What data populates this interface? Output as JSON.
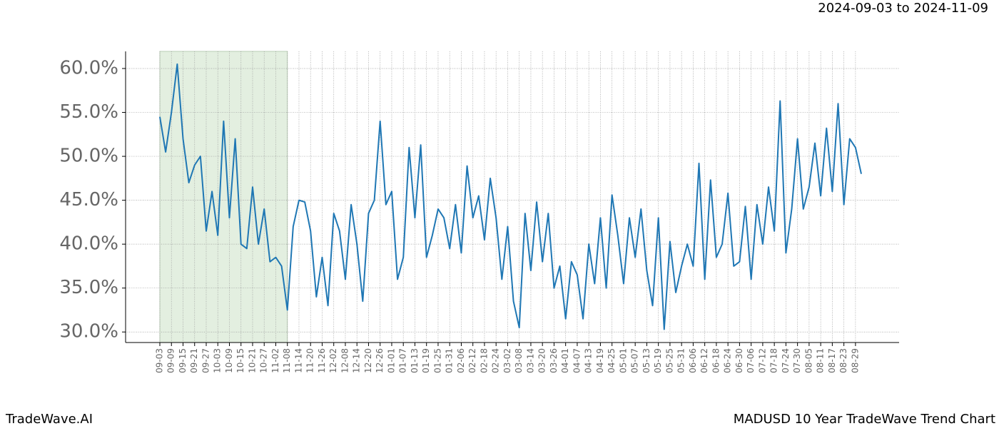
{
  "chart_data": {
    "type": "line",
    "date_range": "2024-09-03 to 2024-11-09",
    "footer_left": "TradeWave.AI",
    "footer_right": "MADUSD 10 Year TradeWave Trend Chart",
    "color": "#1f77b4",
    "highlight": {
      "from": "09-03",
      "to": "11-08",
      "color": "#e3efe0"
    },
    "grid": true,
    "ylim": [
      28.8,
      61.95
    ],
    "yticks": [
      {
        "value": 30,
        "label": "30.0%"
      },
      {
        "value": 35,
        "label": "35.0%"
      },
      {
        "value": 40,
        "label": "40.0%"
      },
      {
        "value": 45,
        "label": "45.0%"
      },
      {
        "value": 50,
        "label": "50.0%"
      },
      {
        "value": 55,
        "label": "55.0%"
      },
      {
        "value": 60,
        "label": "60.0%"
      }
    ],
    "categories": [
      "09-03",
      null,
      "09-09",
      null,
      "09-15",
      null,
      "09-21",
      null,
      "09-27",
      null,
      "10-03",
      null,
      "10-09",
      null,
      "10-15",
      null,
      "10-21",
      null,
      "10-27",
      null,
      "11-02",
      null,
      "11-08",
      null,
      "11-14",
      null,
      "11-20",
      null,
      "11-26",
      null,
      "12-02",
      null,
      "12-08",
      null,
      "12-14",
      null,
      "12-20",
      null,
      "12-26",
      null,
      "01-01",
      null,
      "01-07",
      null,
      "01-13",
      null,
      "01-19",
      null,
      "01-25",
      null,
      "01-31",
      null,
      "02-06",
      null,
      "02-12",
      null,
      "02-18",
      null,
      "02-24",
      null,
      "03-02",
      null,
      "03-08",
      null,
      "03-14",
      null,
      "03-20",
      null,
      "03-26",
      null,
      "04-01",
      null,
      "04-07",
      null,
      "04-13",
      null,
      "04-19",
      null,
      "04-25",
      null,
      "05-01",
      null,
      "05-07",
      null,
      "05-13",
      null,
      "05-19",
      null,
      "05-25",
      null,
      "05-31",
      null,
      "06-06",
      null,
      "06-12",
      null,
      "06-18",
      null,
      "06-24",
      null,
      "06-30",
      null,
      "07-06",
      null,
      "07-12",
      null,
      "07-18",
      null,
      "07-24",
      null,
      "07-30",
      null,
      "08-05",
      null,
      "08-11",
      null,
      "08-17",
      null,
      "08-23",
      null,
      "08-29",
      null
    ],
    "values": [
      54.5,
      50.5,
      55,
      60.5,
      52,
      47,
      49,
      50,
      41.5,
      46,
      41,
      54,
      43,
      52,
      40,
      39.5,
      46.5,
      40,
      44,
      38,
      38.5,
      37.5,
      32.5,
      42,
      45,
      44.8,
      41.5,
      34,
      38.5,
      33,
      43.5,
      41.5,
      36,
      44.5,
      40,
      33.5,
      43.5,
      45,
      54,
      44.5,
      46,
      36,
      38.5,
      51,
      43,
      51.3,
      38.5,
      41,
      44,
      43,
      39.5,
      44.5,
      39,
      48.9,
      43,
      45.5,
      40.5,
      47.5,
      43,
      36,
      42,
      33.5,
      30.5,
      43.5,
      37,
      44.8,
      38,
      43.5,
      35,
      37.5,
      31.5,
      38,
      36.5,
      31.5,
      40,
      35.5,
      43,
      35,
      45.6,
      41,
      35.5,
      43,
      38.5,
      44,
      37,
      33,
      43,
      30.3,
      40.3,
      34.5,
      37.5,
      40,
      37.5,
      49.2,
      36,
      47.3,
      38.5,
      40,
      45.8,
      37.5,
      38,
      44.3,
      36,
      44.5,
      40,
      46.5,
      41.5,
      56.3,
      39,
      44,
      52,
      44,
      46.5,
      51.5,
      45.5,
      53.2,
      46,
      56,
      44.5,
      52,
      51,
      48
    ]
  }
}
